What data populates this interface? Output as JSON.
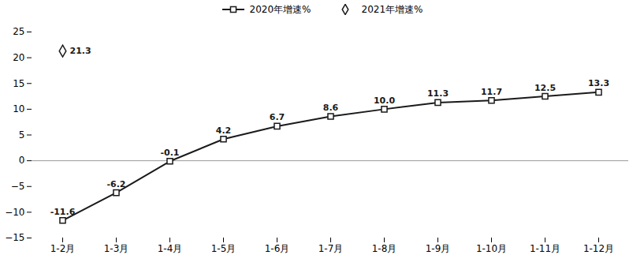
{
  "chart_data": {
    "type": "line",
    "categories": [
      "1-2月",
      "1-3月",
      "1-4月",
      "1-5月",
      "1-6月",
      "1-7月",
      "1-8月",
      "1-9月",
      "1-10月",
      "1-11月",
      "1-12月"
    ],
    "series": [
      {
        "name": "2020年增速%",
        "color": "#1a1a1a",
        "marker": "square",
        "values": [
          -11.6,
          -6.2,
          -0.1,
          4.2,
          6.7,
          8.6,
          10.0,
          11.3,
          11.7,
          12.5,
          13.3
        ],
        "value_labels": [
          "-11.6",
          "-6.2",
          "-0.1",
          "4.2",
          "6.7",
          "8.6",
          "10.0",
          "11.3",
          "11.7",
          "12.5",
          "13.3"
        ]
      },
      {
        "name": "2021年增速%",
        "color": "#1a1a1a",
        "marker": "diamond",
        "type": "scatter",
        "values": [
          21.3,
          null,
          null,
          null,
          null,
          null,
          null,
          null,
          null,
          null,
          null
        ]
      }
    ],
    "ylim": [
      -15,
      25
    ],
    "yticks": [
      -15,
      -10,
      -5,
      0,
      5,
      10,
      15,
      20,
      25
    ],
    "grid": false,
    "legend": "top",
    "data_labels": true
  }
}
